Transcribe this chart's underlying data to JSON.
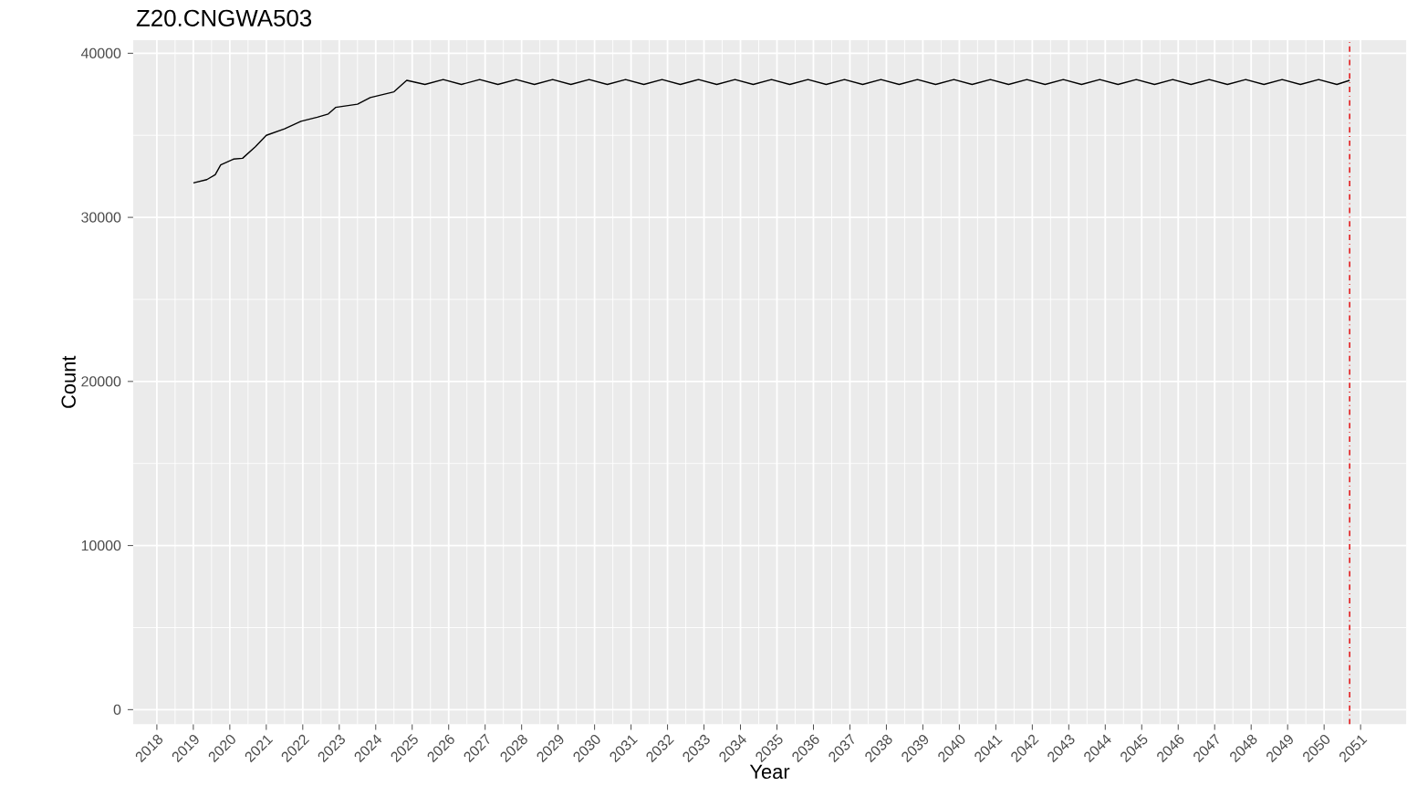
{
  "chart_data": {
    "type": "line",
    "title": "Z20.CNGWA503",
    "xlabel": "Year",
    "ylabel": "Count",
    "xlim": [
      2017.35,
      2052.25
    ],
    "ylim": [
      -900,
      40800
    ],
    "xticks": [
      2018,
      2019,
      2020,
      2021,
      2022,
      2023,
      2024,
      2025,
      2026,
      2027,
      2028,
      2029,
      2030,
      2031,
      2032,
      2033,
      2034,
      2035,
      2036,
      2037,
      2038,
      2039,
      2040,
      2041,
      2042,
      2043,
      2044,
      2045,
      2046,
      2047,
      2048,
      2049,
      2050,
      2051
    ],
    "yticks": [
      0,
      10000,
      20000,
      30000,
      40000
    ],
    "grid": true,
    "line_style": "solid",
    "ref_lines": [
      {
        "axis": "x",
        "value": 2050.7,
        "color": "#e41a1c",
        "line_style": "dashdot"
      }
    ],
    "series": [
      {
        "color": "#000000",
        "x": [
          2019.0,
          2019.37,
          2019.6,
          2019.75,
          2020.1,
          2020.35,
          2020.7,
          2021.0,
          2021.5,
          2021.95,
          2022.4,
          2022.7,
          2022.9,
          2023.5,
          2023.85,
          2024.5,
          2024.85,
          2025.35,
          2025.85,
          2026.35,
          2026.85,
          2027.35,
          2027.85,
          2028.35,
          2028.85,
          2029.35,
          2029.85,
          2030.35,
          2030.85,
          2031.35,
          2031.85,
          2032.35,
          2032.85,
          2033.35,
          2033.85,
          2034.35,
          2034.85,
          2035.35,
          2035.85,
          2036.35,
          2036.85,
          2037.35,
          2037.85,
          2038.35,
          2038.85,
          2039.35,
          2039.85,
          2040.35,
          2040.85,
          2041.35,
          2041.85,
          2042.35,
          2042.85,
          2043.35,
          2043.85,
          2044.35,
          2044.85,
          2045.35,
          2045.85,
          2046.35,
          2046.85,
          2047.35,
          2047.85,
          2048.35,
          2048.85,
          2049.35,
          2049.85,
          2050.35,
          2050.7
        ],
        "values": [
          32100,
          32300,
          32600,
          33200,
          33550,
          33600,
          34300,
          35000,
          35400,
          35850,
          36100,
          36300,
          36700,
          36900,
          37300,
          37650,
          38350,
          38100,
          38400,
          38100,
          38400,
          38100,
          38400,
          38100,
          38400,
          38100,
          38400,
          38100,
          38400,
          38100,
          38400,
          38100,
          38400,
          38100,
          38400,
          38100,
          38400,
          38100,
          38400,
          38100,
          38400,
          38100,
          38400,
          38100,
          38400,
          38100,
          38400,
          38100,
          38400,
          38100,
          38400,
          38100,
          38400,
          38100,
          38400,
          38100,
          38400,
          38100,
          38400,
          38100,
          38400,
          38100,
          38400,
          38100,
          38400,
          38100,
          38400,
          38100,
          38350
        ]
      }
    ]
  }
}
